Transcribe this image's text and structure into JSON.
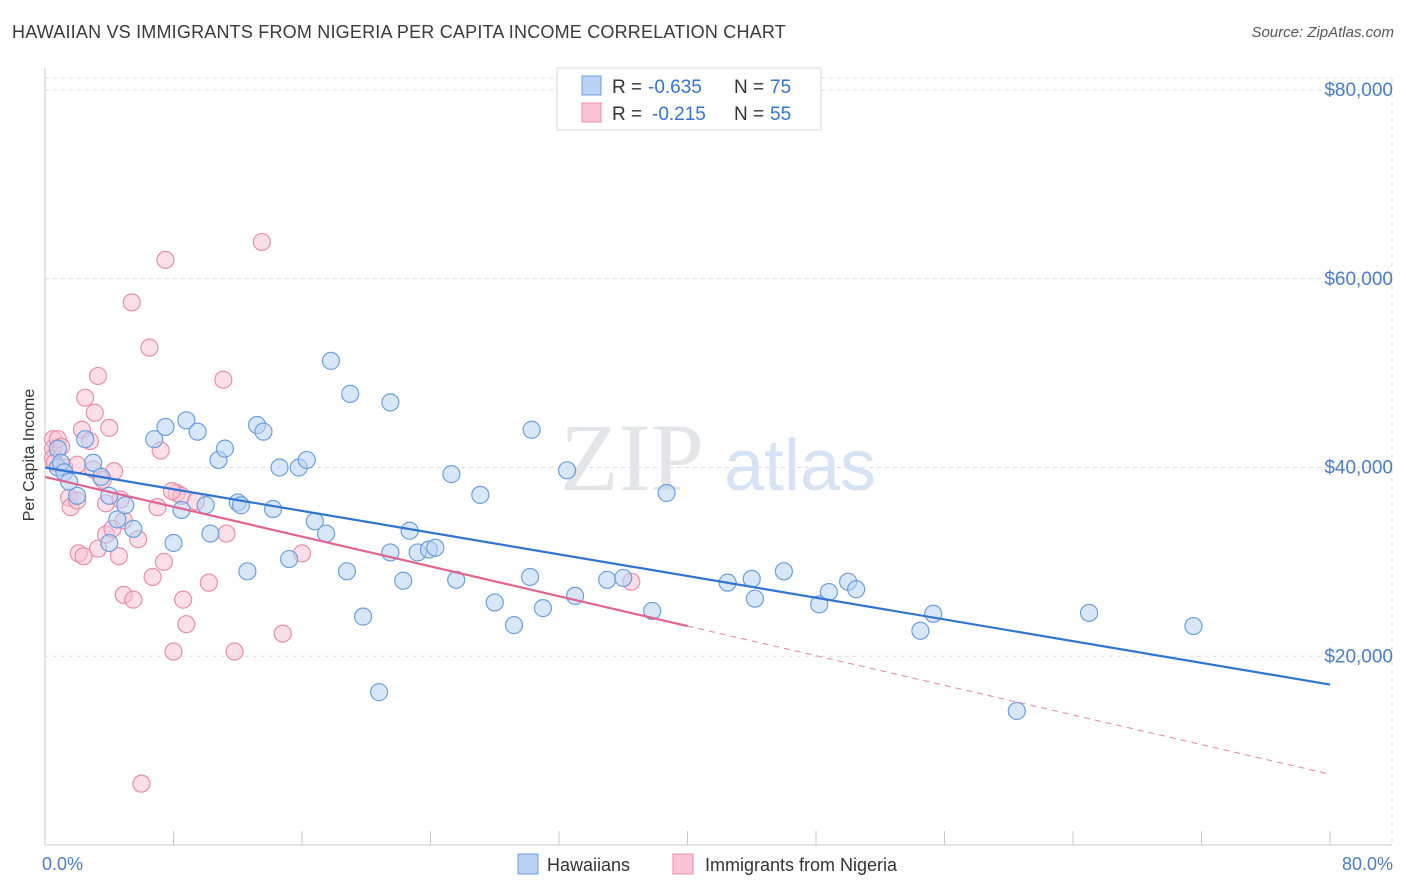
{
  "header": {
    "title": "HAWAIIAN VS IMMIGRANTS FROM NIGERIA PER CAPITA INCOME CORRELATION CHART",
    "source": "Source: ZipAtlas.com"
  },
  "watermark": {
    "zip": "ZIP",
    "atlas": "atlas"
  },
  "colors": {
    "blue_fill": "#b8d3f3",
    "blue_stroke": "#6b9fde",
    "blue_line": "#2f74d0",
    "pink_fill": "#f8c3d4",
    "pink_stroke": "#e98eab",
    "pink_line": "#e0648f",
    "axis_text": "#4a7cc7",
    "grid": "#d8dbe0"
  },
  "legend_top": {
    "rows": [
      {
        "r_label": "R = ",
        "r_value": "-0.635",
        "n_label": "N = ",
        "n_value": "75"
      },
      {
        "r_label": "R = ",
        "r_value": "-0.215",
        "n_label": "N = ",
        "n_value": "55"
      }
    ]
  },
  "chart_data": {
    "type": "scatter",
    "title": "HAWAIIAN VS IMMIGRANTS FROM NIGERIA PER CAPITA INCOME CORRELATION CHART",
    "xlabel": "",
    "ylabel": "Per Capita Income",
    "xlim": [
      0,
      80
    ],
    "ylim": [
      0,
      80000
    ],
    "x_tick_labels": [
      "0.0%",
      "80.0%"
    ],
    "y_ticks": [
      20000,
      40000,
      60000,
      80000
    ],
    "y_tick_labels": [
      "$20,000",
      "$40,000",
      "$60,000",
      "$80,000"
    ],
    "grid": true,
    "legend_position": "bottom",
    "series": [
      {
        "name": "Hawaiians",
        "R": -0.635,
        "N": 75,
        "trend": {
          "x0": 0,
          "y0": 40000,
          "x1": 80,
          "y1": 17000
        },
        "points": [
          [
            0.8,
            42000
          ],
          [
            0.8,
            40000
          ],
          [
            1.0,
            40500
          ],
          [
            1.2,
            39500
          ],
          [
            1.5,
            38500
          ],
          [
            2.0,
            37000
          ],
          [
            2.5,
            43000
          ],
          [
            3.0,
            40500
          ],
          [
            3.5,
            39000
          ],
          [
            4.0,
            37000
          ],
          [
            4.0,
            32000
          ],
          [
            4.5,
            34500
          ],
          [
            5.0,
            36000
          ],
          [
            5.5,
            33500
          ],
          [
            6.8,
            43000
          ],
          [
            7.5,
            44300
          ],
          [
            8.0,
            32000
          ],
          [
            8.5,
            35500
          ],
          [
            8.8,
            45000
          ],
          [
            9.5,
            43800
          ],
          [
            10.0,
            36000
          ],
          [
            10.3,
            33000
          ],
          [
            10.8,
            40800
          ],
          [
            11.2,
            42000
          ],
          [
            12.0,
            36300
          ],
          [
            12.2,
            36000
          ],
          [
            12.6,
            29000
          ],
          [
            13.2,
            44500
          ],
          [
            13.6,
            43800
          ],
          [
            14.2,
            35600
          ],
          [
            14.6,
            40000
          ],
          [
            15.2,
            30300
          ],
          [
            15.8,
            40000
          ],
          [
            16.3,
            40800
          ],
          [
            16.8,
            34300
          ],
          [
            17.5,
            33000
          ],
          [
            17.8,
            51300
          ],
          [
            18.8,
            29000
          ],
          [
            19.0,
            47800
          ],
          [
            19.8,
            24200
          ],
          [
            20.8,
            16200
          ],
          [
            21.5,
            31000
          ],
          [
            21.5,
            46900
          ],
          [
            22.3,
            28000
          ],
          [
            22.7,
            33300
          ],
          [
            23.2,
            31000
          ],
          [
            23.9,
            31300
          ],
          [
            24.3,
            31500
          ],
          [
            25.3,
            39300
          ],
          [
            25.6,
            28100
          ],
          [
            27.1,
            37100
          ],
          [
            28.0,
            25700
          ],
          [
            29.2,
            23300
          ],
          [
            30.2,
            28400
          ],
          [
            30.3,
            44000
          ],
          [
            31.0,
            25100
          ],
          [
            32.5,
            39700
          ],
          [
            33.0,
            26400
          ],
          [
            35.0,
            28100
          ],
          [
            36.0,
            28300
          ],
          [
            37.8,
            24800
          ],
          [
            38.7,
            37300
          ],
          [
            42.5,
            27800
          ],
          [
            44.0,
            28200
          ],
          [
            44.2,
            26100
          ],
          [
            46.0,
            29000
          ],
          [
            48.2,
            25500
          ],
          [
            48.8,
            26800
          ],
          [
            50.0,
            27900
          ],
          [
            50.5,
            27100
          ],
          [
            54.5,
            22700
          ],
          [
            55.3,
            24500
          ],
          [
            60.5,
            14200
          ],
          [
            65.0,
            24600
          ],
          [
            71.5,
            23200
          ]
        ]
      },
      {
        "name": "Immigrants from Nigeria",
        "R": -0.215,
        "N": 55,
        "trend": {
          "x0": 0,
          "y0": 39000,
          "x1": 40,
          "y1": 23200,
          "dash_x1": 80,
          "dash_y1": 7500
        },
        "points": [
          [
            0.5,
            43000
          ],
          [
            0.5,
            42000
          ],
          [
            0.5,
            41000
          ],
          [
            0.6,
            40500
          ],
          [
            0.8,
            43000
          ],
          [
            1.0,
            42200
          ],
          [
            1.2,
            40000
          ],
          [
            1.5,
            36800
          ],
          [
            1.6,
            35800
          ],
          [
            2.0,
            36500
          ],
          [
            2.0,
            40300
          ],
          [
            2.1,
            30900
          ],
          [
            2.3,
            44000
          ],
          [
            2.4,
            30600
          ],
          [
            2.5,
            47400
          ],
          [
            2.8,
            42800
          ],
          [
            3.0,
            39800
          ],
          [
            3.1,
            45800
          ],
          [
            3.3,
            31400
          ],
          [
            3.3,
            49700
          ],
          [
            3.6,
            38700
          ],
          [
            3.8,
            32900
          ],
          [
            3.8,
            36200
          ],
          [
            4.0,
            44200
          ],
          [
            4.2,
            33500
          ],
          [
            4.3,
            39600
          ],
          [
            4.6,
            30600
          ],
          [
            4.7,
            36600
          ],
          [
            4.9,
            34400
          ],
          [
            4.9,
            26500
          ],
          [
            5.4,
            57500
          ],
          [
            5.5,
            26000
          ],
          [
            5.8,
            32400
          ],
          [
            6.0,
            6500
          ],
          [
            6.5,
            52700
          ],
          [
            6.7,
            28400
          ],
          [
            7.0,
            35800
          ],
          [
            7.2,
            41800
          ],
          [
            7.4,
            30000
          ],
          [
            7.5,
            62000
          ],
          [
            8.0,
            20500
          ],
          [
            8.2,
            37300
          ],
          [
            8.5,
            37000
          ],
          [
            8.6,
            26000
          ],
          [
            8.8,
            23400
          ],
          [
            9.4,
            36400
          ],
          [
            10.2,
            27800
          ],
          [
            11.1,
            49300
          ],
          [
            11.3,
            33000
          ],
          [
            11.8,
            20500
          ],
          [
            13.5,
            63900
          ],
          [
            14.8,
            22400
          ],
          [
            16.0,
            30900
          ],
          [
            36.5,
            27900
          ],
          [
            7.9,
            37500
          ]
        ]
      }
    ]
  },
  "legend_bottom": {
    "items": [
      {
        "label": "Hawaiians"
      },
      {
        "label": "Immigrants from Nigeria"
      }
    ]
  }
}
